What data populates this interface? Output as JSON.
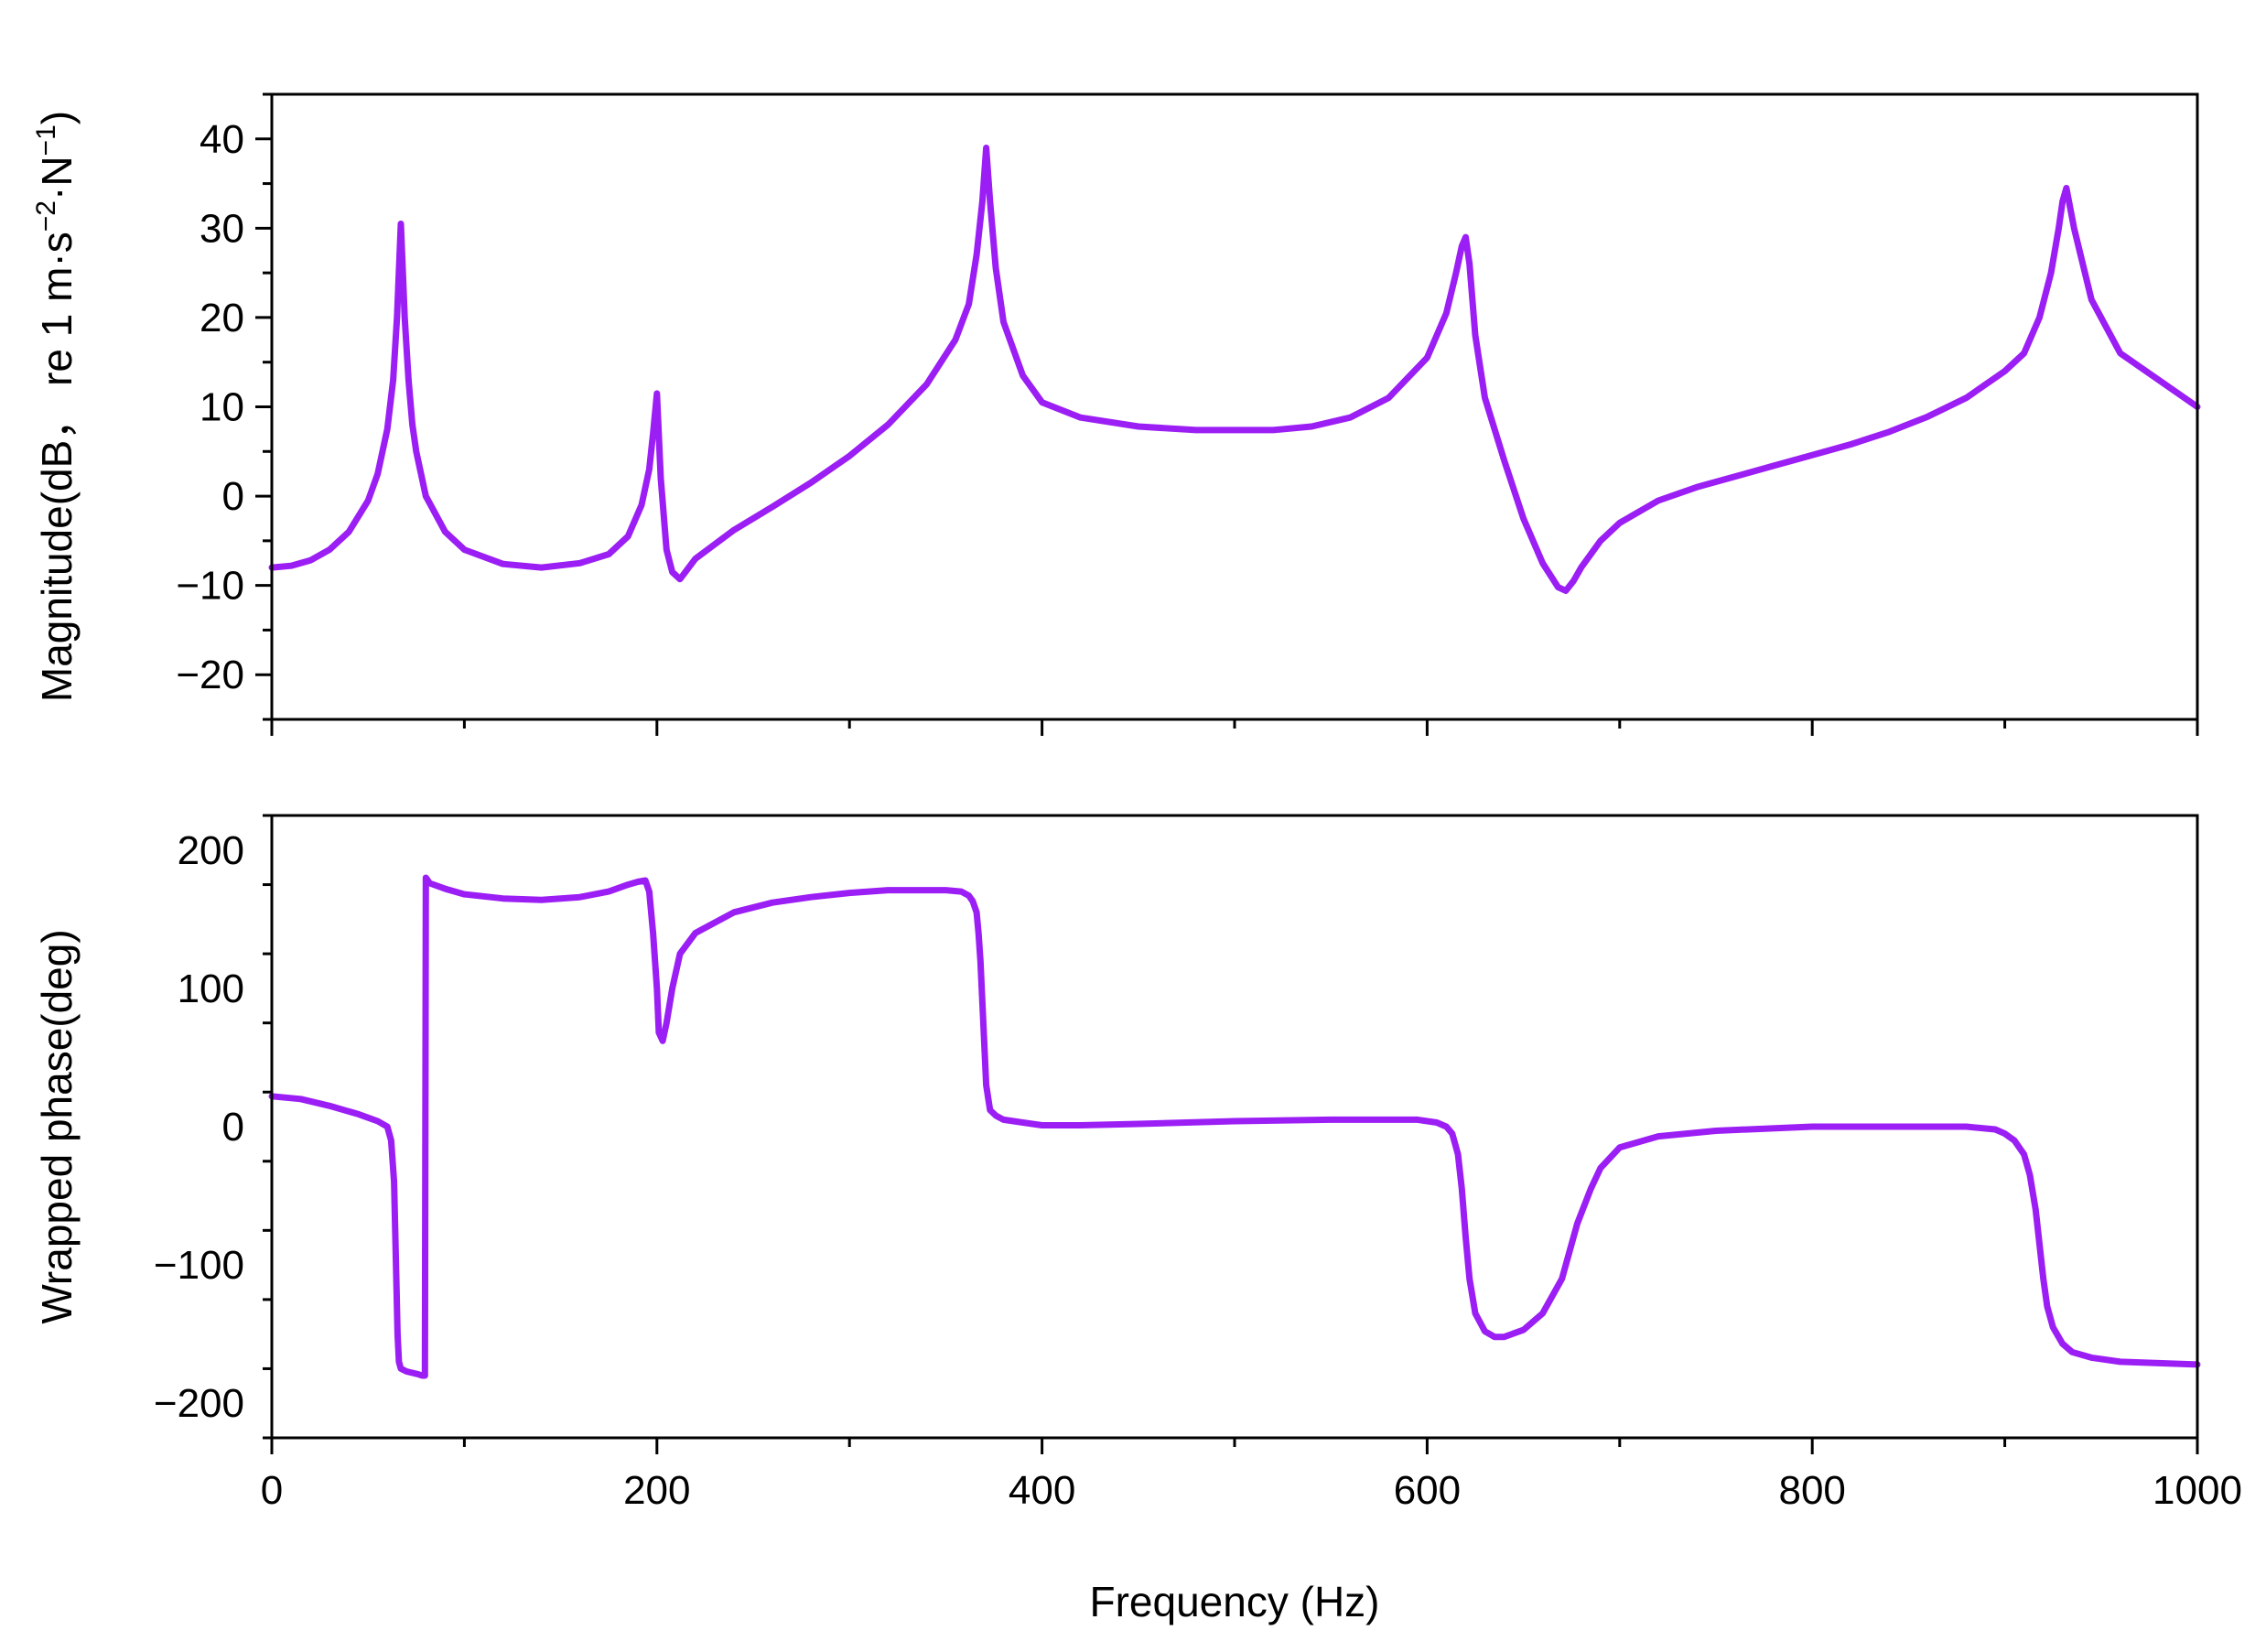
{
  "chart_data": [
    {
      "type": "line",
      "ylabel_main": "Magnitude(dB，  re 1 m·s",
      "ylabel_sup1": "−2",
      "ylabel_mid": "·N",
      "ylabel_sup2": "−1",
      "ylabel_end": ")",
      "xlabel": "",
      "xlim": [
        0,
        1000
      ],
      "ylim": [
        -25,
        45
      ],
      "x_ticks": [
        0,
        200,
        400,
        600,
        800,
        1000
      ],
      "y_ticks": [
        -20,
        -10,
        0,
        10,
        20,
        30,
        40
      ],
      "y_tick_labels": [
        "−20",
        "−10",
        "0",
        "10",
        "20",
        "30",
        "40"
      ],
      "color": "#9b1ef5",
      "series": [
        {
          "x": [
            0,
            10,
            20,
            30,
            40,
            50,
            55,
            60,
            63,
            65,
            67,
            69,
            71,
            73,
            75,
            80,
            90,
            100,
            120,
            140,
            160,
            175,
            185,
            192,
            196,
            198,
            200,
            202,
            205,
            208,
            212,
            220,
            240,
            260,
            280,
            300,
            320,
            340,
            355,
            362,
            366,
            369,
            371,
            373,
            376,
            380,
            390,
            400,
            420,
            450,
            480,
            500,
            520,
            540,
            560,
            580,
            600,
            610,
            615,
            618,
            620,
            622,
            625,
            630,
            640,
            650,
            660,
            668,
            672,
            676,
            680,
            690,
            700,
            720,
            740,
            760,
            780,
            800,
            820,
            840,
            860,
            880,
            900,
            910,
            918,
            924,
            928,
            930,
            932,
            936,
            945,
            960,
            980,
            1000
          ],
          "y": [
            -8,
            -7.8,
            -7.2,
            -6,
            -4,
            -0.5,
            2.5,
            7.5,
            13,
            20,
            30.5,
            20,
            13,
            8,
            5,
            0,
            -4,
            -6,
            -7.6,
            -8,
            -7.5,
            -6.5,
            -4.5,
            -1,
            3,
            7,
            11.5,
            2,
            -6,
            -8.5,
            -9.3,
            -7,
            -3.8,
            -1.2,
            1.5,
            4.5,
            8,
            12.5,
            17.5,
            21.5,
            27,
            33,
            39,
            33,
            25.5,
            19.5,
            13.5,
            10.5,
            8.8,
            7.8,
            7.4,
            7.4,
            7.4,
            7.8,
            8.8,
            11,
            15.5,
            20.5,
            25,
            28,
            29,
            26,
            18,
            11,
            4,
            -2.5,
            -7.5,
            -10.2,
            -10.6,
            -9.5,
            -8,
            -5,
            -3,
            -0.5,
            1,
            2.2,
            3.4,
            4.6,
            5.8,
            7.2,
            8.9,
            11,
            14,
            16,
            20,
            25,
            30,
            33,
            34.5,
            30,
            22,
            16,
            13,
            10
          ]
        }
      ]
    },
    {
      "type": "line",
      "ylabel": "Wrapped phase(deg)",
      "xlabel": "Frequency (Hz)",
      "xlim": [
        0,
        1000
      ],
      "ylim": [
        -225,
        225
      ],
      "x_ticks": [
        0,
        200,
        400,
        600,
        800,
        1000
      ],
      "x_tick_labels": [
        "0",
        "200",
        "400",
        "600",
        "800",
        "1000"
      ],
      "y_ticks": [
        -200,
        -100,
        0,
        100,
        200
      ],
      "y_tick_labels": [
        "−200",
        "−100",
        "0",
        "100",
        "200"
      ],
      "color": "#9b1ef5",
      "series": [
        {
          "x": [
            0,
            15,
            30,
            45,
            55,
            60,
            62,
            63.5,
            64.5,
            65.3,
            66,
            67,
            70,
            73,
            76,
            78,
            79,
            79.5,
            80,
            80.5,
            82,
            90,
            100,
            120,
            140,
            160,
            175,
            185,
            190,
            194,
            196,
            198,
            200,
            201,
            203,
            205,
            208,
            212,
            220,
            240,
            260,
            280,
            300,
            320,
            340,
            350,
            358,
            362,
            364,
            366,
            367,
            368,
            369,
            370,
            371,
            373,
            376,
            380,
            390,
            400,
            420,
            450,
            500,
            550,
            580,
            595,
            605,
            610,
            613,
            616,
            618,
            620,
            622,
            625,
            630,
            635,
            640,
            650,
            660,
            670,
            678,
            685,
            690,
            700,
            720,
            750,
            800,
            850,
            880,
            895,
            900,
            905,
            910,
            913,
            916,
            918,
            920,
            922,
            925,
            930,
            935,
            945,
            960,
            980,
            1000
          ],
          "y": [
            22,
            20,
            15,
            9,
            4,
            0,
            -10,
            -40,
            -100,
            -150,
            -170,
            -175,
            -177,
            -178,
            -179,
            -180,
            -180,
            -180,
            180,
            179,
            176,
            172,
            168,
            165,
            164,
            166,
            170,
            175,
            177,
            178,
            170,
            140,
            100,
            68,
            62,
            75,
            100,
            125,
            140,
            155,
            162,
            166,
            169,
            171,
            171,
            171,
            170,
            167,
            163,
            155,
            140,
            120,
            90,
            60,
            30,
            12,
            8,
            5,
            3,
            1,
            1,
            2,
            4,
            5,
            5,
            5,
            3,
            0,
            -5,
            -20,
            -45,
            -80,
            -110,
            -135,
            -148,
            -152,
            -152,
            -147,
            -135,
            -110,
            -70,
            -45,
            -30,
            -15,
            -7,
            -3,
            0,
            0,
            0,
            -2,
            -5,
            -10,
            -20,
            -35,
            -60,
            -85,
            -110,
            -130,
            -145,
            -157,
            -163,
            -167,
            -170,
            -171,
            -172
          ]
        }
      ]
    }
  ]
}
